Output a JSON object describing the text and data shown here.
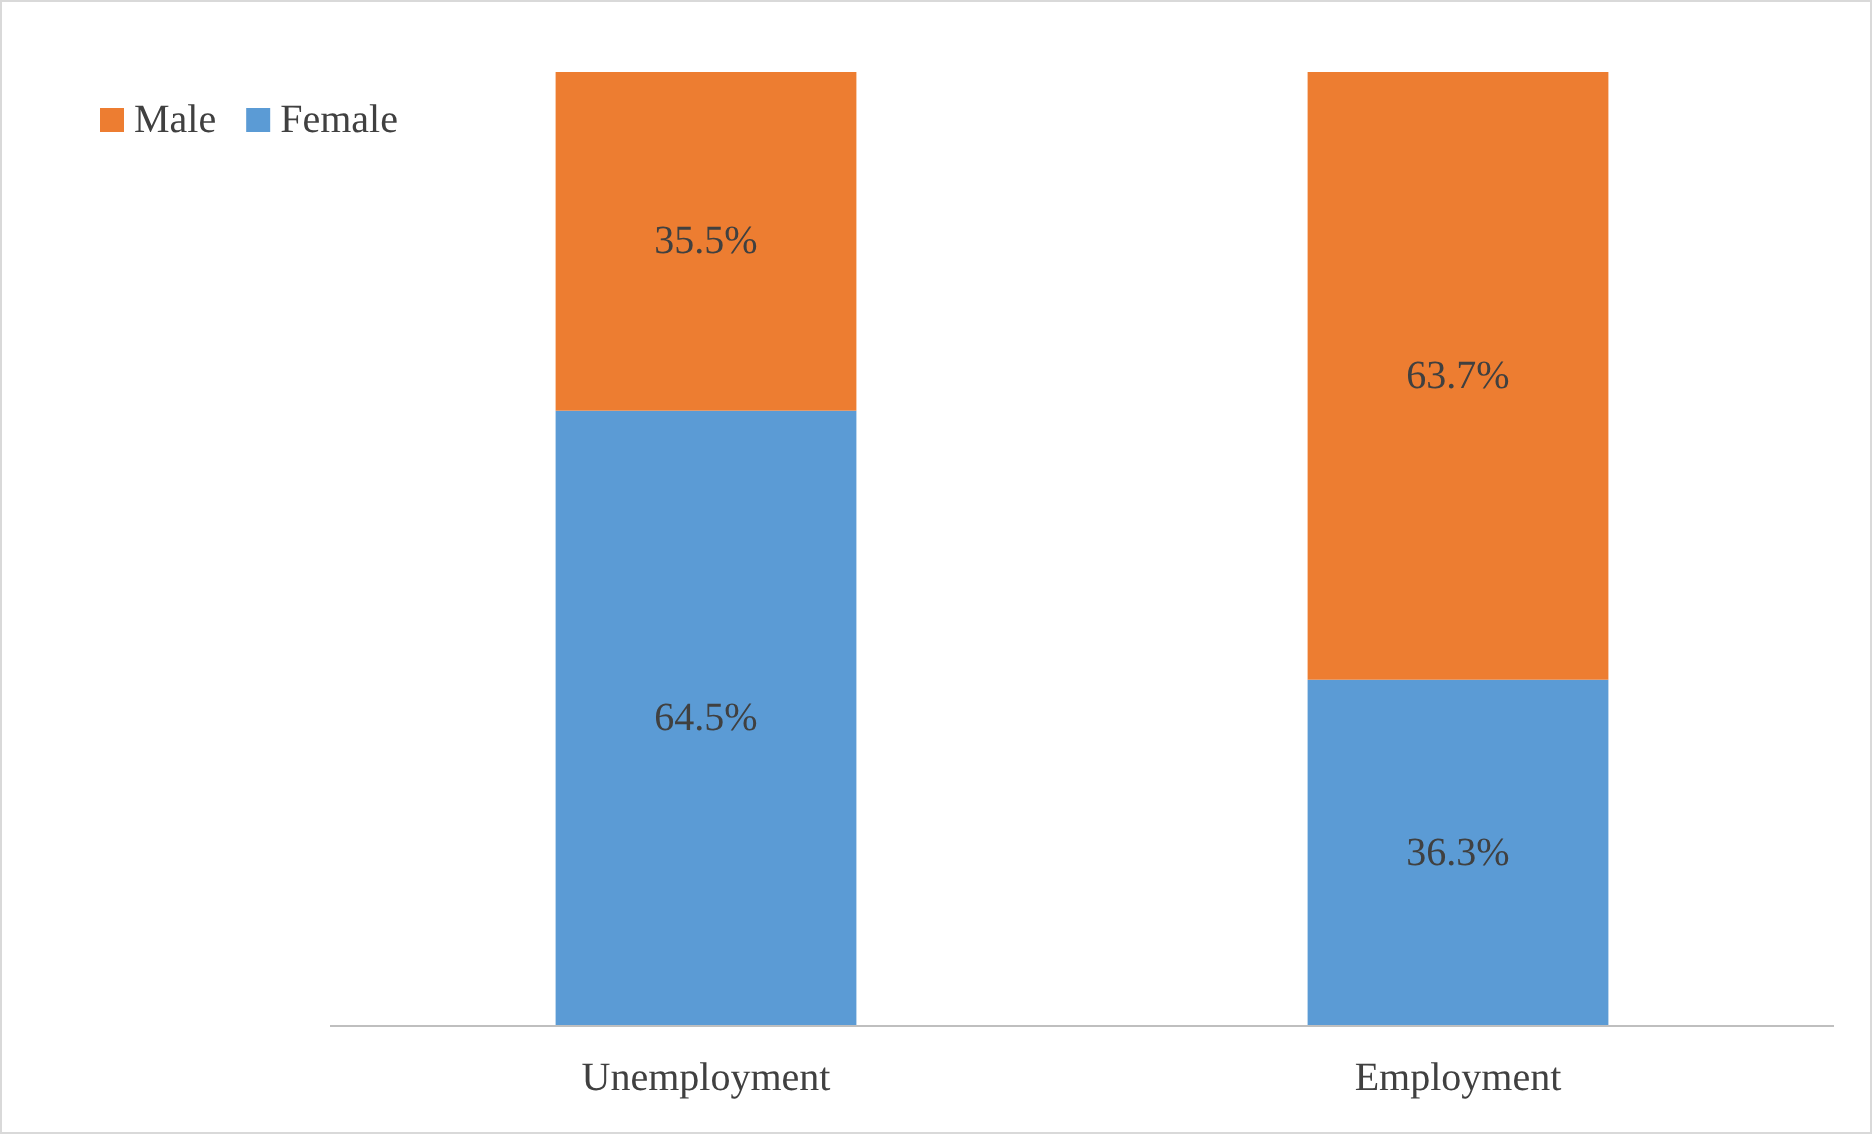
{
  "chart_data": {
    "type": "bar",
    "stacked": true,
    "categories": [
      "Unemployment",
      "Employment"
    ],
    "ylim": [
      0,
      100
    ],
    "tick_labels": "x",
    "legend": "top left",
    "series": [
      {
        "name": "Female",
        "color": "#5b9bd5",
        "values": [
          64.5,
          36.3
        ],
        "value_labels": [
          "64.5%",
          "36.3%"
        ]
      },
      {
        "name": "Male",
        "color": "#ed7d31",
        "values": [
          35.5,
          63.7
        ],
        "value_labels": [
          "35.5%",
          "63.7%"
        ]
      }
    ]
  }
}
